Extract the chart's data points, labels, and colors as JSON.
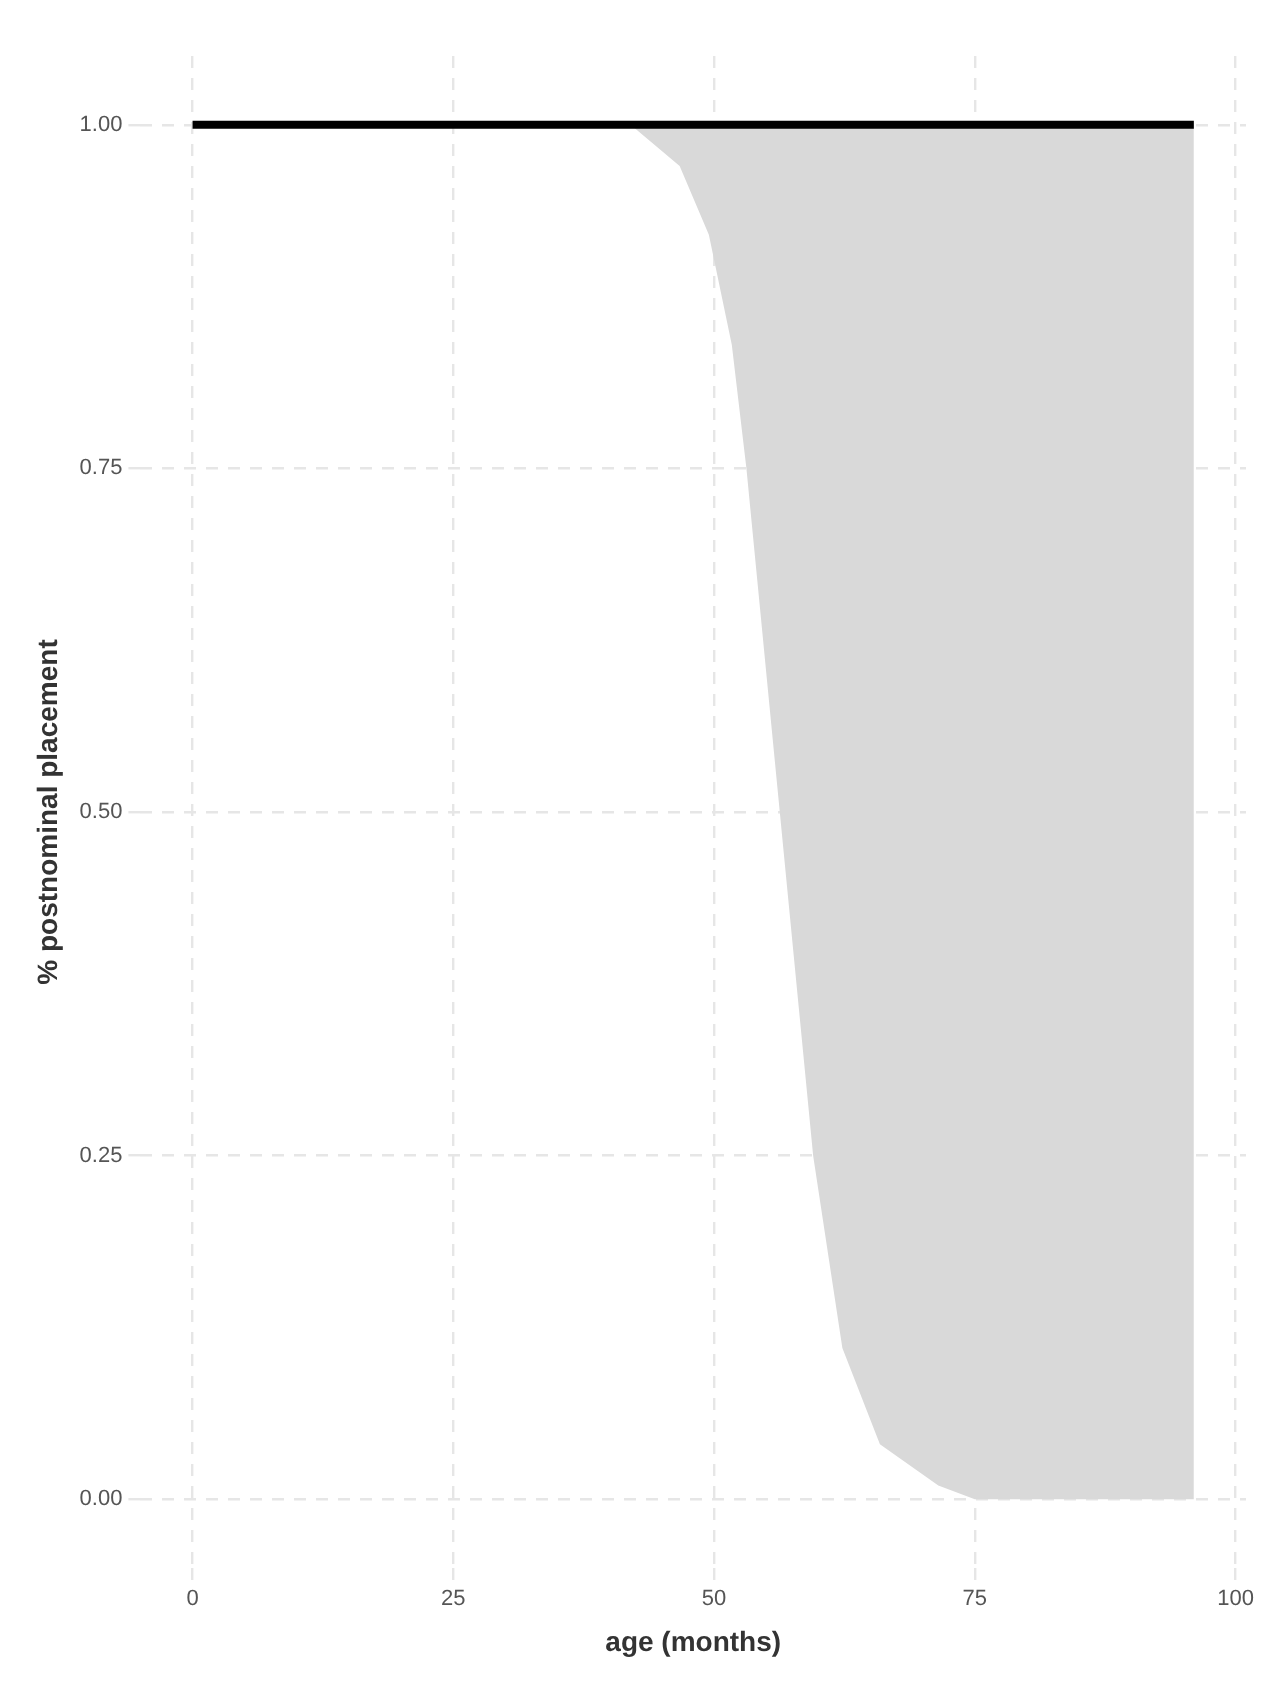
{
  "chart_data": {
    "type": "line",
    "xlabel": "age (months)",
    "ylabel": "% postnominal placement",
    "series": [
      {
        "color": "#000000",
        "x": [
          0,
          42,
          46.7,
          49.5,
          51.7,
          53.1,
          56.3,
          59.5,
          62.3,
          65.9,
          71.5,
          75,
          96
        ],
        "values": [
          1,
          1,
          1,
          1,
          1,
          1,
          1,
          1,
          1,
          1,
          1,
          1,
          1
        ],
        "lower": [
          1,
          1,
          0.97,
          0.92,
          0.84,
          0.75,
          0.5,
          0.25,
          0.11,
          0.04,
          0.01,
          0,
          0
        ],
        "upper": [
          1,
          1,
          1,
          1,
          1,
          1,
          1,
          1,
          1,
          1,
          1,
          1,
          1
        ]
      }
    ],
    "xlim": [
      -5,
      101
    ],
    "xticks": [
      0,
      25,
      50,
      75,
      100
    ],
    "ylim": [
      -0.05,
      1.05
    ],
    "yticks": [
      {
        "value": 0,
        "label": "0.00"
      },
      {
        "value": 0.25,
        "label": "0.25"
      },
      {
        "value": 0.5,
        "label": "0.50"
      },
      {
        "value": 0.75,
        "label": "0.75"
      },
      {
        "value": 1,
        "label": "1.00"
      }
    ],
    "grid": true,
    "legend": false,
    "marker": "none",
    "line_style": "solid"
  }
}
